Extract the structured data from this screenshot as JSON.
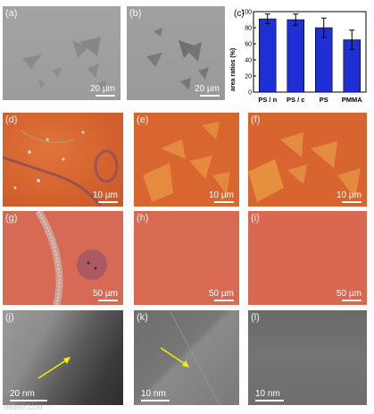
{
  "panels": {
    "a": {
      "label": "(a)",
      "scale": "20 µm"
    },
    "b": {
      "label": "(b)",
      "scale": "20 µm"
    },
    "c": {
      "label": "(c)"
    },
    "d": {
      "label": "(d)",
      "scale": "10 µm"
    },
    "e": {
      "label": "(e)",
      "scale": "10 µm"
    },
    "f": {
      "label": "(f)",
      "scale": "10 µm"
    },
    "g": {
      "label": "(g)",
      "scale": "50 µm"
    },
    "h": {
      "label": "(h)",
      "scale": "50 µm"
    },
    "i": {
      "label": "(i)",
      "scale": "50 µm"
    },
    "j": {
      "label": "(j)",
      "scale": "20 nm"
    },
    "k": {
      "label": "(k)",
      "scale": "10 nm"
    },
    "l": {
      "label": "(l)",
      "scale": "10 nm"
    }
  },
  "watermark": "MWENT.COM",
  "chart_data": {
    "type": "bar",
    "categories": [
      "PS / n",
      "PS / c",
      "PS",
      "PMMA"
    ],
    "values": [
      91,
      90,
      80,
      65
    ],
    "errors": [
      6,
      7,
      12,
      12
    ],
    "ylabel": "area ratios (%)",
    "ylim": [
      0,
      100
    ],
    "yticks": [
      0,
      20,
      40,
      60,
      80,
      100
    ],
    "bar_color": "#1f2fd6",
    "grid": false
  }
}
